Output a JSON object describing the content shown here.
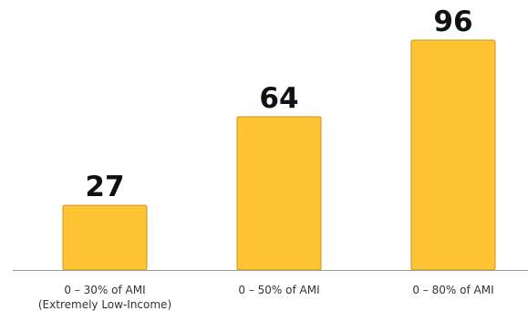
{
  "colors": {
    "bar_fill": "#FFC334",
    "bar_stroke": "#C89318",
    "axis": "#9A9A9A",
    "text": "#111111",
    "tick_text": "#333333"
  },
  "chart_data": {
    "type": "bar",
    "title": "",
    "xlabel": "",
    "ylabel": "",
    "categories": [
      [
        "0 – 30% of AMI",
        "(Extremely Low-Income)"
      ],
      [
        "0 – 50% of AMI"
      ],
      [
        "0 – 80% of AMI"
      ]
    ],
    "values": [
      27,
      64,
      96
    ],
    "data_labels": [
      "27",
      "64",
      "96"
    ],
    "ylim": [
      0,
      96
    ],
    "grid": false,
    "legend": "none"
  }
}
